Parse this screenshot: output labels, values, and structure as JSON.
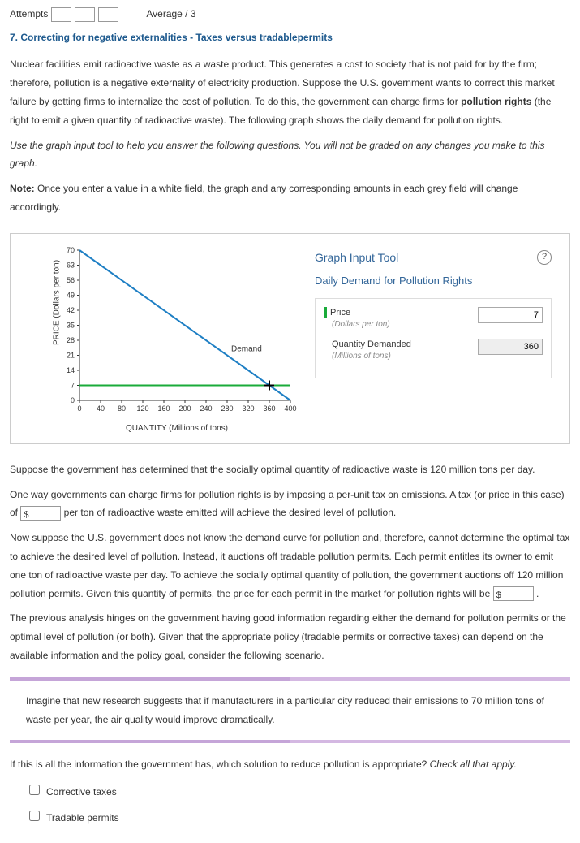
{
  "attempts": {
    "label": "Attempts",
    "average_label": "Average / 3"
  },
  "section_title": "7. Correcting for negative externalities - Taxes versus tradablepermits",
  "intro_p1a": "Nuclear facilities emit radioactive waste as a waste product. This generates a cost to society that is not paid for by the firm; therefore, pollution is a negative externality of electricity production. Suppose the U.S. government wants to correct this market failure by getting firms to internalize the cost of pollution. To do this, the government can charge firms for ",
  "intro_p1_bold": "pollution rights",
  "intro_p1b": " (the right to emit a given quantity of radioactive waste). The following graph shows the daily demand for pollution rights.",
  "instr_italic": "Use the graph input tool to help you answer the following questions. You will not be graded on any changes you make to this graph.",
  "note_bold": "Note:",
  "note_text": " Once you enter a value in a white field, the graph and any corresponding amounts in each grey field will change accordingly.",
  "chart": {
    "y_label": "PRICE (Dollars per ton)",
    "x_label": "QUANTITY (Millions of tons)",
    "y_ticks": [
      "0",
      "7",
      "14",
      "21",
      "28",
      "35",
      "42",
      "49",
      "56",
      "63",
      "70"
    ],
    "x_ticks": [
      "0",
      "40",
      "80",
      "120",
      "160",
      "200",
      "240",
      "280",
      "320",
      "360",
      "400"
    ],
    "demand_label": "Demand",
    "demand_color": "#1e7fc4",
    "price_line_color": "#1aab3a",
    "crosshair_color": "#000",
    "axis_color": "#333",
    "tick_color": "#333",
    "demand_x1": 0,
    "demand_y1": 70,
    "demand_x2": 400,
    "demand_y2": 0,
    "price_y": 7,
    "cross_x": 360,
    "cross_y": 7
  },
  "tool": {
    "header": "Graph Input Tool",
    "daily_title": "Daily Demand for Pollution Rights",
    "price_label": "Price",
    "price_sub": "(Dollars per ton)",
    "price_value": "7",
    "qty_label": "Quantity Demanded",
    "qty_sub": "(Millions of tons)",
    "qty_value": "360"
  },
  "q_optimal": "Suppose the government has determined that the socially optimal quantity of radioactive waste is 120 million tons per day.",
  "q_tax_a": "One way governments can charge firms for pollution rights is by imposing a per-unit tax on emissions. A tax (or price in this case) of ",
  "q_tax_b": " per ton of radioactive waste emitted will achieve the desired level of pollution.",
  "q_permit_a": "Now suppose the U.S. government does not know the demand curve for pollution and, therefore, cannot determine the optimal tax to achieve the desired level of pollution. Instead, it auctions off tradable pollution permits. Each permit entitles its owner to emit one ton of radioactive waste per day. To achieve the socially optimal quantity of pollution, the government auctions off 120 million pollution permits. Given this quantity of permits, the price for each permit in the market for pollution rights will be ",
  "q_permit_b": " .",
  "q_info": "The previous analysis hinges on the government having good information regarding either the demand for pollution permits or the optimal level of pollution (or both). Given that the appropriate policy (tradable permits or corrective taxes) can depend on the available information and the policy goal, consider the following scenario.",
  "scenario_text": "Imagine that new research suggests that if manufacturers in a particular city reduced their emissions to 70 million tons of waste per year, the air quality would improve dramatically.",
  "check_q_a": "If this is all the information the government has, which solution to reduce pollution is appropriate? ",
  "check_q_b": "Check all that apply.",
  "opt1": "Corrective taxes",
  "opt2": "Tradable permits"
}
